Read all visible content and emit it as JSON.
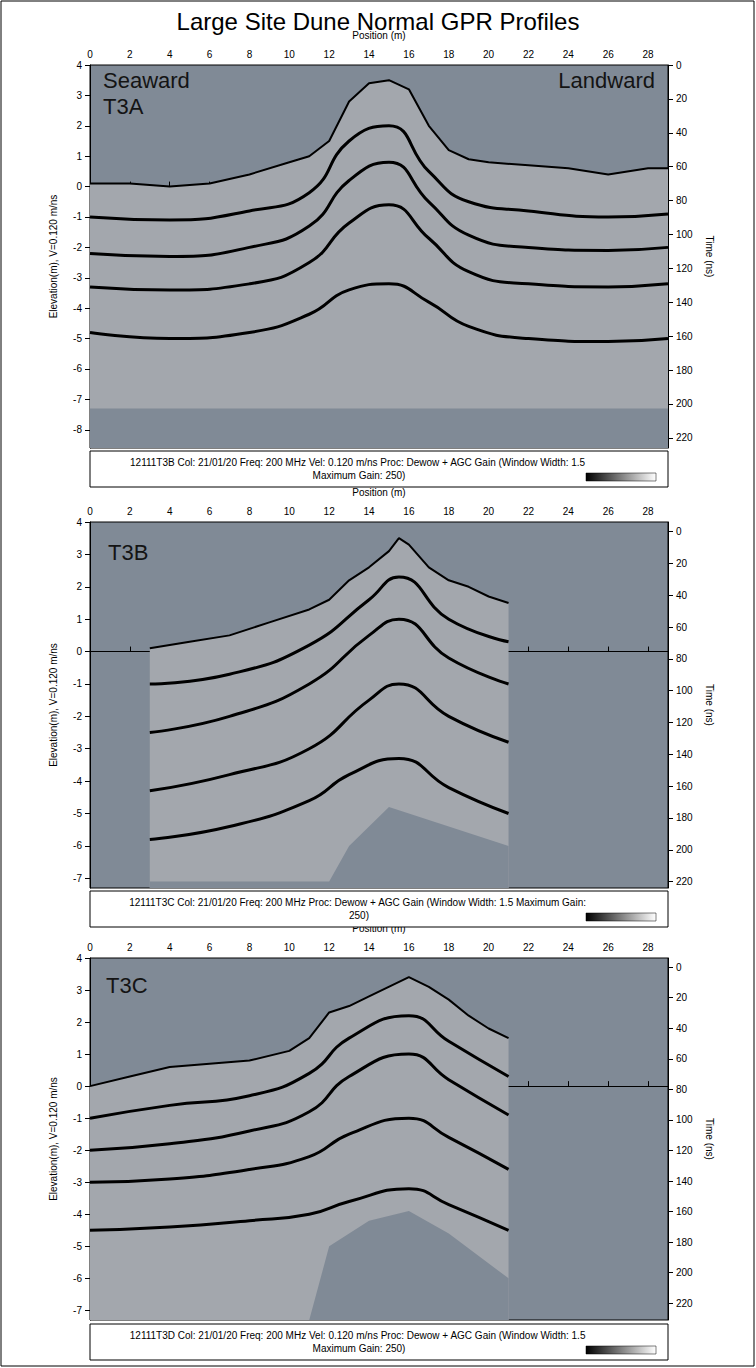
{
  "title": "Large Site Dune Normal GPR Profiles",
  "chart_data": [
    {
      "type": "line",
      "panel_label": "T3A",
      "annotations": [
        "Seaward",
        "Landward"
      ],
      "x_label": "Position (m)",
      "y_label": "Elevation(m), V=0.120 m/ns",
      "y2_label": "Time (ns)",
      "caption": "12111T3B Col: 21/01/20 Freq: 200 MHz Vel: 0.120 m/ns Proc: Dewow + AGC Gain (Window Width: 1.5 Maximum Gain: 250)",
      "xlim": [
        0,
        29
      ],
      "xticks": [
        0,
        2,
        4,
        6,
        8,
        10,
        12,
        14,
        16,
        18,
        20,
        22,
        24,
        26,
        28
      ],
      "ylim": [
        -8.6,
        4
      ],
      "yticks": [
        -8,
        -7,
        -6,
        -5,
        -4,
        -3,
        -2,
        -1,
        0,
        1,
        2,
        3,
        4
      ],
      "y2lim": [
        0,
        226
      ],
      "y2ticks": [
        0,
        20,
        40,
        60,
        80,
        100,
        120,
        140,
        160,
        180,
        200,
        220
      ],
      "grid": false,
      "surface": {
        "color": "#a3a7ad",
        "x": [
          0,
          2,
          4,
          6,
          8,
          10,
          11,
          12,
          13,
          14,
          15,
          16,
          17,
          18,
          19,
          20,
          22,
          24,
          26,
          28,
          29
        ],
        "values": [
          0.1,
          0.1,
          0.0,
          0.1,
          0.4,
          0.8,
          1.0,
          1.5,
          2.8,
          3.4,
          3.5,
          3.2,
          2.0,
          1.2,
          0.9,
          0.8,
          0.7,
          0.6,
          0.4,
          0.6,
          0.6
        ]
      },
      "base": {
        "x": [
          0,
          29
        ],
        "values": [
          -7.3,
          -7.3
        ]
      },
      "reflectors": {
        "color": "#000000",
        "lines": [
          {
            "x": [
              0,
              4,
              8,
              11,
              13,
              15,
              17,
              19,
              22,
              26,
              29
            ],
            "values": [
              -1.0,
              -1.1,
              -0.8,
              -0.2,
              1.5,
              2.0,
              0.5,
              -0.5,
              -0.8,
              -1.0,
              -0.9
            ]
          },
          {
            "x": [
              0,
              4,
              8,
              11,
              13,
              15,
              17,
              19,
              22,
              26,
              29
            ],
            "values": [
              -2.2,
              -2.3,
              -2.0,
              -1.3,
              0.2,
              0.8,
              -0.5,
              -1.6,
              -2.0,
              -2.1,
              -2.0
            ]
          },
          {
            "x": [
              0,
              4,
              8,
              11,
              13,
              15,
              17,
              19,
              22,
              26,
              29
            ],
            "values": [
              -3.3,
              -3.4,
              -3.2,
              -2.5,
              -1.2,
              -0.6,
              -1.7,
              -2.8,
              -3.2,
              -3.3,
              -3.2
            ]
          },
          {
            "x": [
              0,
              4,
              8,
              11,
              13,
              15,
              17,
              19,
              22,
              26,
              29
            ],
            "values": [
              -4.8,
              -5.0,
              -4.8,
              -4.2,
              -3.4,
              -3.2,
              -3.8,
              -4.6,
              -5.0,
              -5.1,
              -5.0
            ]
          }
        ]
      }
    },
    {
      "type": "line",
      "panel_label": "T3B",
      "annotations": [],
      "x_label": "Position (m)",
      "y_label": "Elevation(m), V=0.120 m/ns",
      "y2_label": "Time (ns)",
      "caption": "12111T3C Col: 21/01/20 Freq: 200 MHz Proc: Dewow + AGC Gain (Window Width: 1.5 Maximum Gain: 250)",
      "xlim": [
        0,
        29
      ],
      "xticks": [
        0,
        2,
        4,
        6,
        8,
        10,
        12,
        14,
        16,
        18,
        20,
        22,
        24,
        26,
        28
      ],
      "ylim": [
        -7.3,
        4
      ],
      "yticks": [
        -7,
        -6,
        -5,
        -4,
        -3,
        -2,
        -1,
        0,
        1,
        2,
        3,
        4
      ],
      "y2lim": [
        -6,
        224
      ],
      "y2ticks": [
        0,
        20,
        40,
        60,
        80,
        100,
        120,
        140,
        160,
        180,
        200,
        220
      ],
      "grid": false,
      "surface": {
        "color": "#a3a7ad",
        "x": [
          3,
          5,
          7,
          9,
          11,
          12,
          13,
          14,
          15,
          15.5,
          16,
          17,
          18,
          19,
          20,
          21
        ],
        "values": [
          0.1,
          0.3,
          0.5,
          0.9,
          1.3,
          1.6,
          2.2,
          2.6,
          3.1,
          3.5,
          3.3,
          2.6,
          2.2,
          2.0,
          1.7,
          1.5
        ]
      },
      "base": {
        "x": [
          3,
          12,
          13,
          15,
          17,
          21
        ],
        "values": [
          -7.1,
          -7.1,
          -6.0,
          -4.8,
          -5.2,
          -6.0
        ]
      },
      "reflectors": {
        "color": "#000000",
        "lines": [
          {
            "x": [
              3,
              7,
              11,
              14,
              15.5,
              18,
              21
            ],
            "values": [
              -1.0,
              -0.7,
              0.2,
              1.6,
              2.3,
              1.0,
              0.3
            ]
          },
          {
            "x": [
              3,
              7,
              11,
              14,
              15.5,
              18,
              21
            ],
            "values": [
              -2.5,
              -2.0,
              -1.0,
              0.5,
              1.0,
              -0.2,
              -1.0
            ]
          },
          {
            "x": [
              3,
              7,
              11,
              14,
              15.5,
              18,
              21
            ],
            "values": [
              -4.3,
              -3.8,
              -3.0,
              -1.5,
              -1.0,
              -2.0,
              -2.8
            ]
          },
          {
            "x": [
              3,
              7,
              11,
              13,
              15.5,
              18,
              21
            ],
            "values": [
              -5.8,
              -5.4,
              -4.6,
              -3.8,
              -3.3,
              -4.2,
              -5.0
            ]
          }
        ]
      }
    },
    {
      "type": "line",
      "panel_label": "T3C",
      "annotations": [],
      "x_label": "Position (m)",
      "y_label": "Elevation(m), V=0.120 m/ns",
      "y2_label": "Time (ns)",
      "caption": "12111T3D Col: 21/01/20 Freq: 200 MHz Vel: 0.120 m/ns Proc: Dewow + AGC Gain (Window Width: 1.5 Maximum Gain: 250)",
      "xlim": [
        0,
        29
      ],
      "xticks": [
        0,
        2,
        4,
        6,
        8,
        10,
        12,
        14,
        16,
        18,
        20,
        22,
        24,
        26,
        28
      ],
      "ylim": [
        -7.3,
        4
      ],
      "yticks": [
        -7,
        -6,
        -5,
        -4,
        -3,
        -2,
        -1,
        0,
        1,
        2,
        3,
        4
      ],
      "y2lim": [
        -6,
        231
      ],
      "y2ticks": [
        0,
        20,
        40,
        60,
        80,
        100,
        120,
        140,
        160,
        180,
        200,
        220
      ],
      "grid": false,
      "surface": {
        "color": "#a3a7ad",
        "x": [
          0,
          2,
          4,
          6,
          8,
          10,
          11,
          12,
          13,
          14,
          16,
          17,
          18,
          19,
          20,
          21
        ],
        "values": [
          0.0,
          0.3,
          0.6,
          0.7,
          0.8,
          1.1,
          1.5,
          2.3,
          2.5,
          2.8,
          3.4,
          3.1,
          2.7,
          2.2,
          1.8,
          1.5
        ]
      },
      "base": {
        "x": [
          0,
          11,
          12,
          14,
          16,
          18,
          21
        ],
        "values": [
          -7.3,
          -7.3,
          -5.0,
          -4.2,
          -3.9,
          -4.6,
          -6.0
        ]
      },
      "reflectors": {
        "color": "#000000",
        "lines": [
          {
            "x": [
              0,
              4,
              8,
              11,
              13,
              16,
              18,
              21
            ],
            "values": [
              -1.0,
              -0.6,
              -0.3,
              0.4,
              1.5,
              2.2,
              1.4,
              0.3
            ]
          },
          {
            "x": [
              0,
              4,
              8,
              11,
              13,
              16,
              18,
              21
            ],
            "values": [
              -2.0,
              -1.8,
              -1.4,
              -0.8,
              0.3,
              1.0,
              0.2,
              -0.9
            ]
          },
          {
            "x": [
              0,
              4,
              8,
              11,
              13,
              16,
              18,
              21
            ],
            "values": [
              -3.0,
              -2.9,
              -2.6,
              -2.2,
              -1.5,
              -1.0,
              -1.6,
              -2.6
            ]
          },
          {
            "x": [
              0,
              4,
              8,
              11,
              13,
              16,
              18,
              21
            ],
            "values": [
              -4.5,
              -4.4,
              -4.2,
              -4.0,
              -3.6,
              -3.2,
              -3.7,
              -4.5
            ]
          }
        ]
      }
    }
  ]
}
